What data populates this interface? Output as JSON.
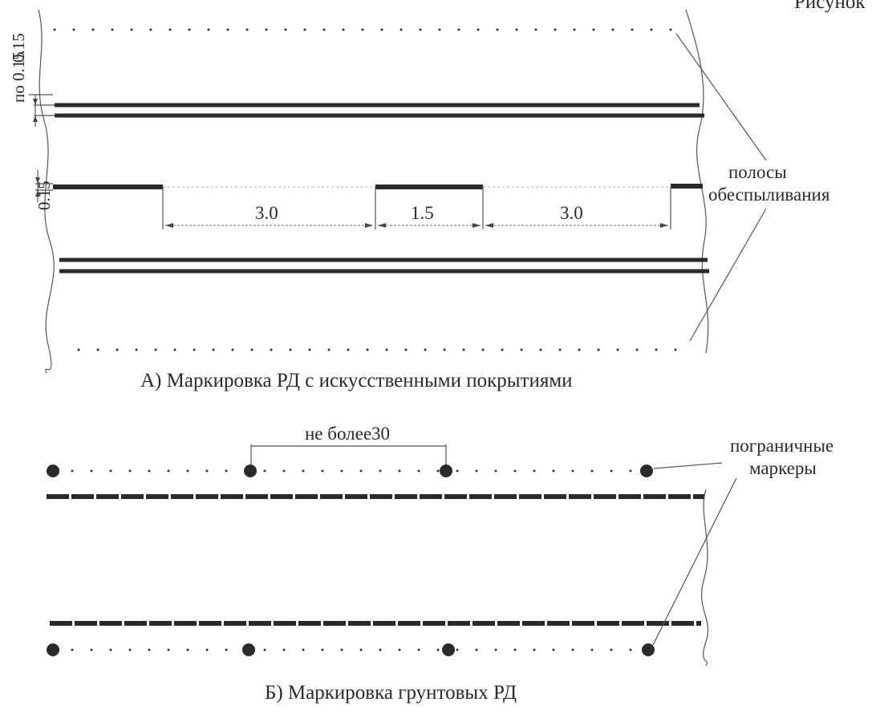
{
  "corner_text": "Рисунок",
  "part_a": {
    "caption": "А) Маркировка РД с искусственными покрытиями",
    "dims": {
      "offset_pair": "по 0.15",
      "offset_top": "0.15",
      "offset_left": "0.15",
      "gap_1": "3.0",
      "dash": "1.5",
      "gap_2": "3.0"
    },
    "callout": [
      "полосы",
      "обеспыливания"
    ]
  },
  "part_b": {
    "caption": "Б) Маркировка грунтовых РД",
    "spacing": "не более30",
    "callout": [
      "пограничные",
      "маркеры"
    ]
  }
}
